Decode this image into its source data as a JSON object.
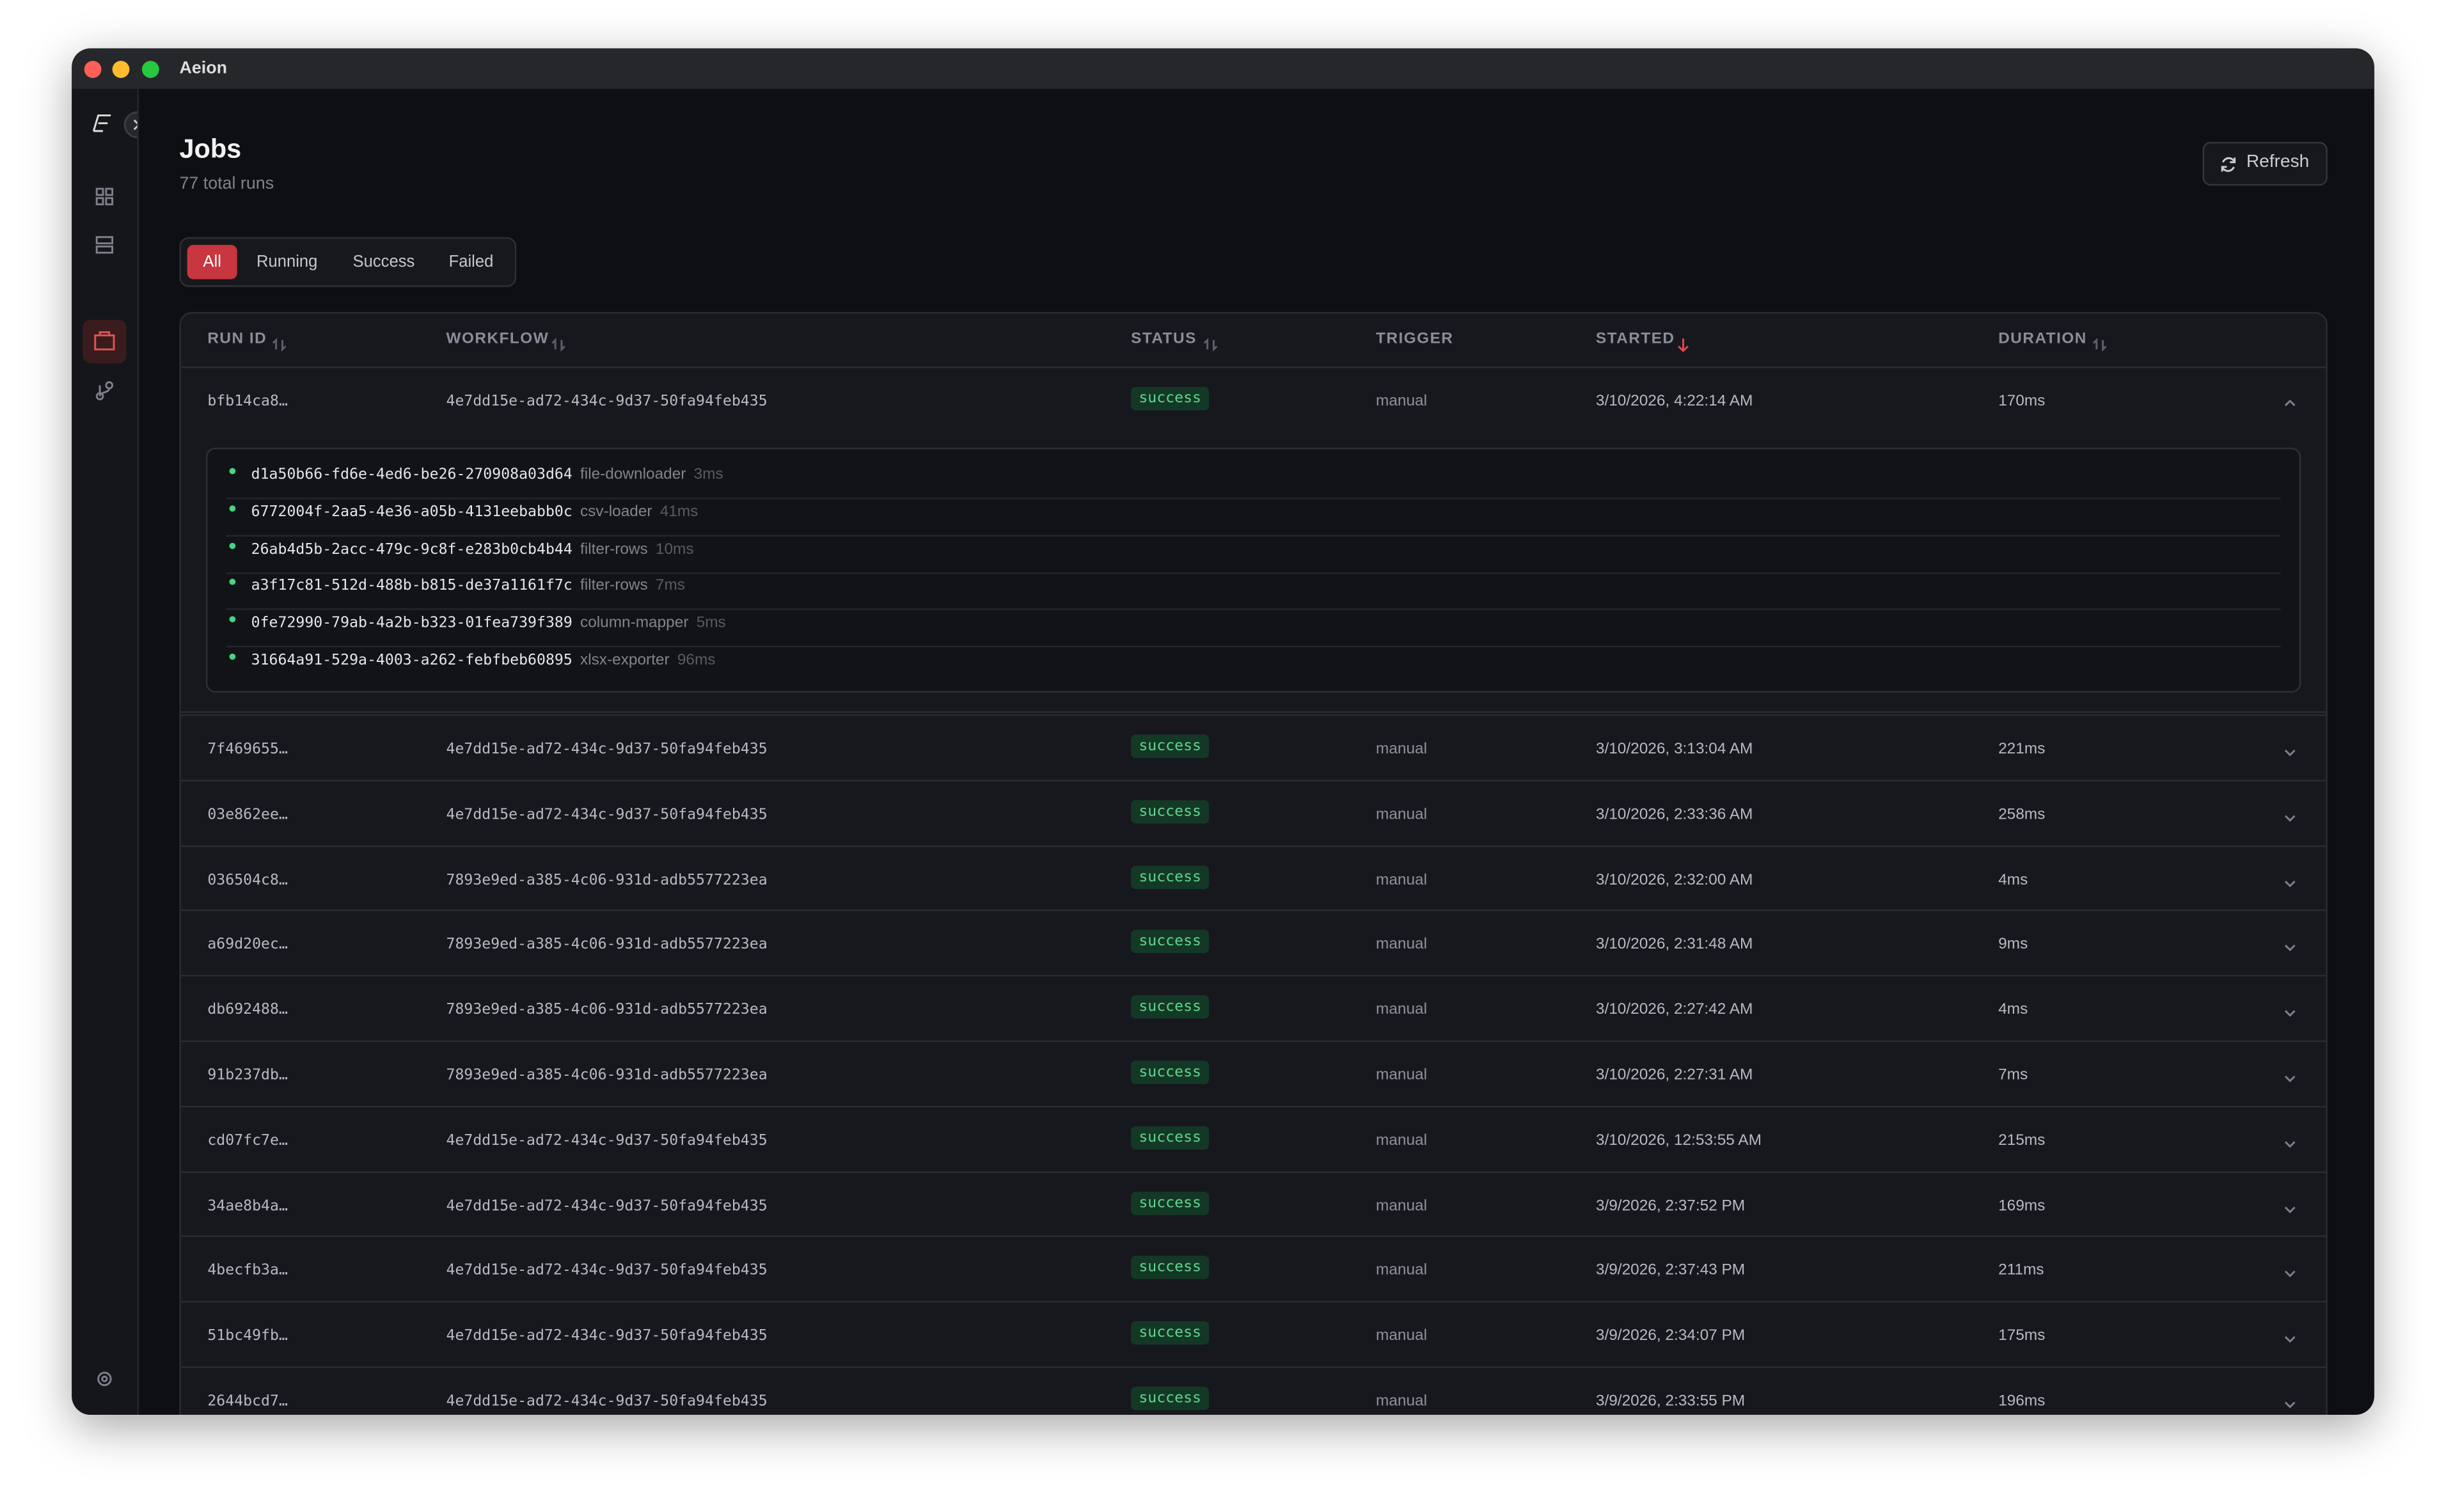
{
  "window": {
    "title": "Aeion"
  },
  "header": {
    "title": "Jobs",
    "subtitle": "77 total runs",
    "refresh": "Refresh"
  },
  "filters": [
    "All",
    "Running",
    "Success",
    "Failed"
  ],
  "table": {
    "columns": [
      "RUN ID",
      "WORKFLOW",
      "STATUS",
      "TRIGGER",
      "STARTED",
      "DURATION"
    ],
    "rows": [
      [
        "bfb14ca8…",
        "4e7dd15e-ad72-434c-9d37-50fa94feb435",
        "success",
        "manual",
        "3/10/2026, 4:22:14 AM",
        "170ms"
      ],
      [
        "7f469655…",
        "4e7dd15e-ad72-434c-9d37-50fa94feb435",
        "success",
        "manual",
        "3/10/2026, 3:13:04 AM",
        "221ms"
      ],
      [
        "03e862ee…",
        "4e7dd15e-ad72-434c-9d37-50fa94feb435",
        "success",
        "manual",
        "3/10/2026, 2:33:36 AM",
        "258ms"
      ],
      [
        "036504c8…",
        "7893e9ed-a385-4c06-931d-adb5577223ea",
        "success",
        "manual",
        "3/10/2026, 2:32:00 AM",
        "4ms"
      ],
      [
        "a69d20ec…",
        "7893e9ed-a385-4c06-931d-adb5577223ea",
        "success",
        "manual",
        "3/10/2026, 2:31:48 AM",
        "9ms"
      ],
      [
        "db692488…",
        "7893e9ed-a385-4c06-931d-adb5577223ea",
        "success",
        "manual",
        "3/10/2026, 2:27:42 AM",
        "4ms"
      ],
      [
        "91b237db…",
        "7893e9ed-a385-4c06-931d-adb5577223ea",
        "success",
        "manual",
        "3/10/2026, 2:27:31 AM",
        "7ms"
      ],
      [
        "cd07fc7e…",
        "4e7dd15e-ad72-434c-9d37-50fa94feb435",
        "success",
        "manual",
        "3/10/2026, 12:53:55 AM",
        "215ms"
      ],
      [
        "34ae8b4a…",
        "4e7dd15e-ad72-434c-9d37-50fa94feb435",
        "success",
        "manual",
        "3/9/2026, 2:37:52 PM",
        "169ms"
      ],
      [
        "4becfb3a…",
        "4e7dd15e-ad72-434c-9d37-50fa94feb435",
        "success",
        "manual",
        "3/9/2026, 2:37:43 PM",
        "211ms"
      ],
      [
        "51bc49fb…",
        "4e7dd15e-ad72-434c-9d37-50fa94feb435",
        "success",
        "manual",
        "3/9/2026, 2:34:07 PM",
        "175ms"
      ],
      [
        "2644bcd7…",
        "4e7dd15e-ad72-434c-9d37-50fa94feb435",
        "success",
        "manual",
        "3/9/2026, 2:33:55 PM",
        "196ms"
      ]
    ],
    "steps": [
      [
        "d1a50b66-fd6e-4ed6-be26-270908a03d64",
        "file-downloader",
        "3ms"
      ],
      [
        "6772004f-2aa5-4e36-a05b-4131eebabb0c",
        "csv-loader",
        "41ms"
      ],
      [
        "26ab4d5b-2acc-479c-9c8f-e283b0cb4b44",
        "filter-rows",
        "10ms"
      ],
      [
        "a3f17c81-512d-488b-b815-de37a1161f7c",
        "filter-rows",
        "7ms"
      ],
      [
        "0fe72990-79ab-4a2b-b323-01fea739f389",
        "column-mapper",
        "5ms"
      ],
      [
        "31664a91-529a-4003-a262-febfbeb60895",
        "xlsx-exporter",
        "96ms"
      ]
    ]
  }
}
